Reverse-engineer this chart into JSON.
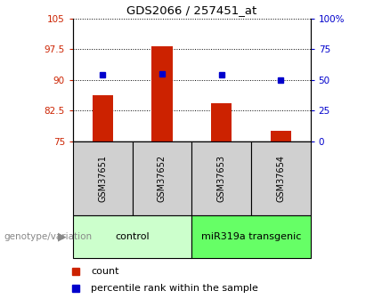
{
  "title": "GDS2066 / 257451_at",
  "samples": [
    "GSM37651",
    "GSM37652",
    "GSM37653",
    "GSM37654"
  ],
  "bar_values": [
    86.2,
    98.3,
    84.2,
    77.5
  ],
  "percentile_values": [
    91.2,
    91.5,
    91.2,
    90.0
  ],
  "bar_color": "#cc2200",
  "percentile_color": "#0000cc",
  "ylim_left": [
    75,
    105
  ],
  "ylim_right": [
    0,
    100
  ],
  "yticks_left": [
    75,
    82.5,
    90,
    97.5,
    105
  ],
  "ytick_labels_left": [
    "75",
    "82.5",
    "90",
    "97.5",
    "105"
  ],
  "yticks_right": [
    0,
    25,
    50,
    75,
    100
  ],
  "ytick_labels_right": [
    "0",
    "25",
    "50",
    "75",
    "100%"
  ],
  "groups": [
    {
      "label": "control",
      "samples": [
        0,
        1
      ],
      "color": "#ccffcc"
    },
    {
      "label": "miR319a transgenic",
      "samples": [
        2,
        3
      ],
      "color": "#66ff66"
    }
  ],
  "genotype_label": "genotype/variation",
  "legend_count_label": "count",
  "legend_percentile_label": "percentile rank within the sample",
  "bar_width": 0.35,
  "bg_color": "#ffffff",
  "plot_bg_color": "#ffffff",
  "sample_box_color": "#d0d0d0"
}
